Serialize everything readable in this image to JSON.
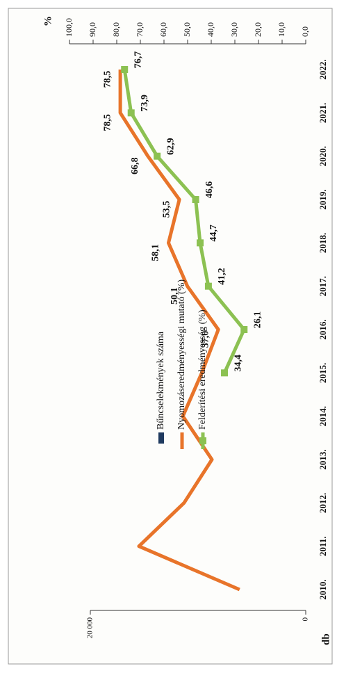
{
  "chart_data": {
    "type": "line",
    "x": [
      "2010.",
      "2011.",
      "2012.",
      "2013.",
      "2014.",
      "2015.",
      "2016.",
      "2017.",
      "2018.",
      "2019.",
      "2020.",
      "2021.",
      "2022."
    ],
    "ylabel": "db",
    "ylim": [
      0,
      20000
    ],
    "yticks": [
      {
        "value": 0,
        "label": "0"
      },
      {
        "value": 20000,
        "label": "20 000"
      }
    ],
    "y2label": "%",
    "y2lim": [
      0,
      100
    ],
    "y2ticks": [
      {
        "value": 0,
        "label": "0,0"
      },
      {
        "value": 10,
        "label": "10,0"
      },
      {
        "value": 20,
        "label": "20,0"
      },
      {
        "value": 30,
        "label": "30,0"
      },
      {
        "value": 40,
        "label": "40,0"
      },
      {
        "value": 50,
        "label": "50,0"
      },
      {
        "value": 60,
        "label": "60,0"
      },
      {
        "value": 70,
        "label": "70,0"
      },
      {
        "value": 80,
        "label": "80,0"
      },
      {
        "value": 90,
        "label": "90,0"
      },
      {
        "value": 100,
        "label": "100,0"
      }
    ],
    "series": [
      {
        "name": "Bűncselekmények száma",
        "color": "#1f3a5f",
        "values": [
          null,
          null,
          null,
          null,
          null,
          null,
          null,
          null,
          null,
          null,
          null,
          null,
          null
        ]
      },
      {
        "name": "Nyomozáseredményességi mutató (%)",
        "color": "#e8742a",
        "axis": "y2",
        "values": [
          28,
          70.6,
          51.5,
          39.7,
          52,
          44,
          37.0,
          50.1,
          58.1,
          53.5,
          66.8,
          78.5,
          78.5
        ],
        "value_labels": [
          null,
          null,
          null,
          null,
          null,
          null,
          "37,0",
          "50,1",
          "58,1",
          "53,5",
          "66,8",
          "78,5",
          "78,5"
        ]
      },
      {
        "name": "Felderítési eredményesség (%)",
        "color": "#8cc152",
        "axis": "y2",
        "values": [
          null,
          null,
          null,
          null,
          null,
          34.4,
          26.1,
          41.2,
          44.7,
          46.6,
          62.9,
          73.9,
          76.7
        ],
        "value_labels": [
          null,
          null,
          null,
          null,
          null,
          "34,4",
          "26,1",
          "41,2",
          "44,7",
          "46,6",
          "62,9",
          "73,9",
          "76,7"
        ]
      }
    ]
  }
}
